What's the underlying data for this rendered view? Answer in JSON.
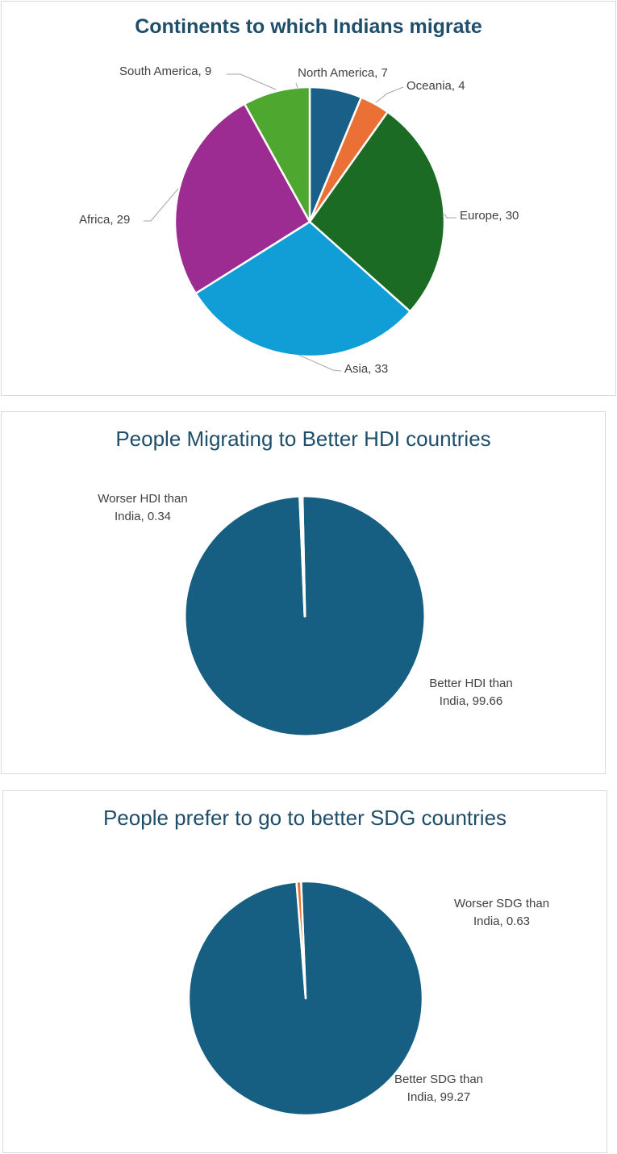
{
  "chart_data": [
    {
      "type": "pie",
      "title": "Continents to which Indians migrate",
      "categories": [
        "North America",
        "Oceania",
        "Europe",
        "Asia",
        "Africa",
        "South America"
      ],
      "values": [
        7,
        4,
        30,
        33,
        29,
        9
      ],
      "colors": [
        "#1a5f87",
        "#ea7036",
        "#1b6b24",
        "#119ed7",
        "#9c2b92",
        "#4ea72e"
      ],
      "labels": [
        "North America, 7",
        "Oceania, 4",
        "Europe, 30",
        "Asia, 33",
        "Africa, 29",
        "South America, 9"
      ],
      "legend": "none"
    },
    {
      "type": "pie",
      "title": "People Migrating to Better HDI countries",
      "categories": [
        "Better HDI than India",
        "Worser HDI than India"
      ],
      "values": [
        99.66,
        0.34
      ],
      "colors": [
        "#165f82",
        "#e97132"
      ],
      "labels": [
        [
          "Better HDI than",
          "India, 99.66"
        ],
        [
          "Worser HDI than",
          "India, 0.34"
        ]
      ],
      "legend": "none"
    },
    {
      "type": "pie",
      "title": "People prefer to go to better SDG countries",
      "categories": [
        "Better SDG than India",
        "Worser SDG than India"
      ],
      "values": [
        99.27,
        0.63
      ],
      "colors": [
        "#165f82",
        "#e97132"
      ],
      "labels": [
        [
          "Better SDG than",
          "India, 99.27"
        ],
        [
          "Worser SDG than",
          "India, 0.63"
        ]
      ],
      "legend": "none"
    }
  ]
}
